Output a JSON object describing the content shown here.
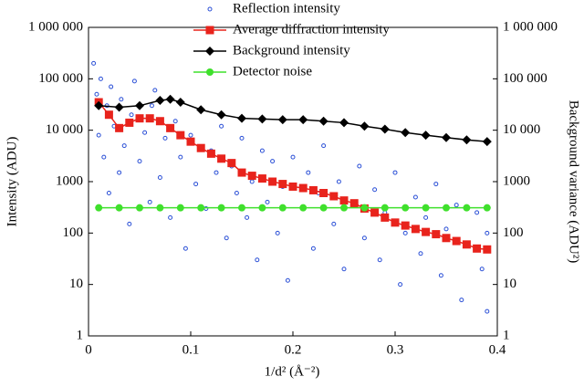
{
  "chart_data": {
    "type": "scatter",
    "xlabel": "1/d² (Å⁻²)",
    "ylabel": "Intensity (ADU)",
    "y2label": "Background variance (ADU²)",
    "xlim": [
      0,
      0.4
    ],
    "xticks": [
      0,
      0.1,
      0.2,
      0.3,
      0.4
    ],
    "ylim": [
      1,
      1000000
    ],
    "yscale": "log",
    "yticks": [
      1,
      10,
      100,
      1000,
      {
        "value": 10000,
        "label": "10 000"
      },
      {
        "value": 100000,
        "label": "100 000"
      },
      {
        "value": 1000000,
        "label": "1 000 000"
      }
    ],
    "y2lim": [
      1,
      1000000
    ],
    "y2ticks": [
      1,
      10,
      100,
      1000,
      {
        "value": 10000,
        "label": "10 000"
      },
      {
        "value": 100000,
        "label": "100 000"
      },
      {
        "value": 1000000,
        "label": "1 000 000"
      }
    ],
    "legend": "top",
    "series": [
      {
        "name": "Reflection intensity",
        "color": "#2a4fd6",
        "marker": "open-circle",
        "x": [
          0.005,
          0.008,
          0.01,
          0.012,
          0.015,
          0.018,
          0.02,
          0.022,
          0.025,
          0.03,
          0.032,
          0.035,
          0.04,
          0.042,
          0.045,
          0.05,
          0.055,
          0.06,
          0.062,
          0.065,
          0.07,
          0.075,
          0.08,
          0.085,
          0.09,
          0.095,
          0.1,
          0.105,
          0.11,
          0.115,
          0.12,
          0.125,
          0.13,
          0.135,
          0.14,
          0.145,
          0.15,
          0.155,
          0.16,
          0.165,
          0.17,
          0.175,
          0.18,
          0.185,
          0.19,
          0.195,
          0.2,
          0.21,
          0.215,
          0.22,
          0.225,
          0.23,
          0.24,
          0.245,
          0.25,
          0.26,
          0.265,
          0.27,
          0.28,
          0.285,
          0.29,
          0.3,
          0.305,
          0.31,
          0.32,
          0.325,
          0.33,
          0.34,
          0.345,
          0.35,
          0.36,
          0.365,
          0.37,
          0.38,
          0.385,
          0.39,
          0.39
        ],
        "values": [
          200000,
          50000,
          8000,
          100000,
          3000,
          30000,
          600,
          70000,
          12000,
          1500,
          40000,
          5000,
          150,
          20000,
          90000,
          2500,
          9000,
          400,
          30000,
          60000,
          1200,
          7000,
          200,
          15000,
          3000,
          50,
          8000,
          900,
          25000,
          300,
          4000,
          1500,
          12000,
          80,
          2000,
          600,
          7000,
          200,
          1000,
          30,
          4000,
          400,
          2500,
          100,
          800,
          12,
          3000,
          300,
          1500,
          50,
          600,
          5000,
          150,
          1000,
          20,
          400,
          2000,
          80,
          700,
          30,
          250,
          1500,
          10,
          100,
          500,
          40,
          200,
          900,
          15,
          120,
          350,
          5,
          60,
          250,
          20,
          100,
          3
        ]
      },
      {
        "name": "Average diffraction intensity",
        "color": "#e8231c",
        "marker": "square",
        "x": [
          0.01,
          0.02,
          0.03,
          0.04,
          0.05,
          0.06,
          0.07,
          0.08,
          0.09,
          0.1,
          0.11,
          0.12,
          0.13,
          0.14,
          0.15,
          0.16,
          0.17,
          0.18,
          0.19,
          0.2,
          0.21,
          0.22,
          0.23,
          0.24,
          0.25,
          0.26,
          0.27,
          0.28,
          0.29,
          0.3,
          0.31,
          0.32,
          0.33,
          0.34,
          0.35,
          0.36,
          0.37,
          0.38,
          0.39
        ],
        "values": [
          35000,
          20000,
          11000,
          14000,
          17000,
          17000,
          15000,
          11000,
          8000,
          6000,
          4500,
          3500,
          2800,
          2300,
          1500,
          1300,
          1150,
          1000,
          900,
          800,
          750,
          680,
          600,
          520,
          430,
          380,
          300,
          250,
          200,
          160,
          140,
          120,
          105,
          95,
          80,
          70,
          60,
          50,
          48
        ]
      },
      {
        "name": "Background intensity",
        "color": "#000000",
        "marker": "diamond",
        "axis": "y2",
        "x": [
          0.01,
          0.03,
          0.05,
          0.07,
          0.08,
          0.09,
          0.11,
          0.13,
          0.15,
          0.17,
          0.19,
          0.21,
          0.23,
          0.25,
          0.27,
          0.29,
          0.31,
          0.33,
          0.35,
          0.37,
          0.39
        ],
        "values": [
          30000,
          28000,
          30000,
          38000,
          40000,
          35000,
          25000,
          20000,
          17000,
          16500,
          16000,
          16000,
          15000,
          14000,
          12000,
          10500,
          9000,
          8000,
          7200,
          6500,
          6000
        ]
      },
      {
        "name": "Detector noise",
        "color": "#3fe02c",
        "marker": "circle",
        "x": [
          0.01,
          0.03,
          0.05,
          0.07,
          0.09,
          0.11,
          0.13,
          0.15,
          0.17,
          0.19,
          0.21,
          0.23,
          0.25,
          0.27,
          0.29,
          0.31,
          0.33,
          0.35,
          0.37,
          0.39
        ],
        "values": [
          310,
          310,
          310,
          310,
          310,
          310,
          310,
          310,
          310,
          310,
          310,
          310,
          310,
          310,
          310,
          310,
          310,
          310,
          310,
          310
        ]
      }
    ]
  }
}
